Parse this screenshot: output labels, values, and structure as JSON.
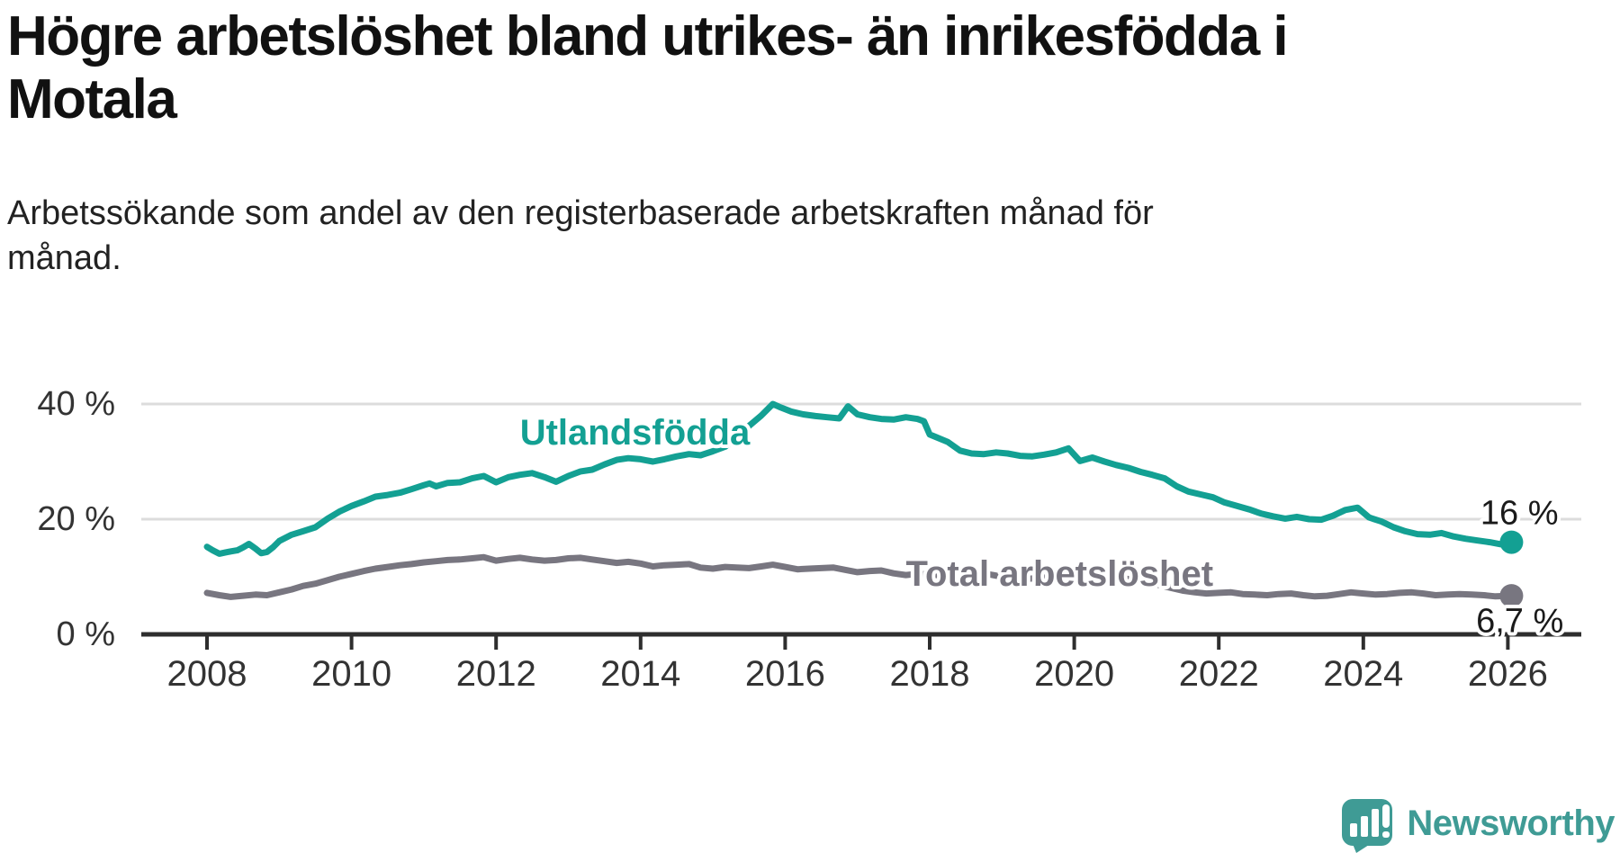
{
  "header": {
    "title": "Högre arbetslöshet bland utrikes- än inrikesfödda i Motala",
    "title_lines": [
      "Högre arbetslöshet bland utrikes- än inrikesfödda i",
      "Motala"
    ],
    "subtitle": "Arbetssökande som andel av den registerbaserade arbetskraften månad för månad.",
    "subtitle_lines": [
      "Arbetssökande som andel av den registerbaserade arbetskraften månad för",
      "månad."
    ]
  },
  "footer": {
    "brand": "Newsworthy"
  },
  "colors": {
    "accent_teal": "#13A093",
    "line_gray": "#787680",
    "grid": "#DCDCDC",
    "axis": "#2E2E2E",
    "tick_label": "#333333",
    "annotation": "#1A1A1A",
    "logo_teal": "#3F9B95",
    "background": "#FFFFFF"
  },
  "chart_data": {
    "type": "line",
    "title": "Högre arbetslöshet bland utrikes- än inrikesfödda i Motala",
    "subtitle": "Arbetssökande som andel av den registerbaserade arbetskraften månad för månad.",
    "xlabel": "",
    "ylabel": "",
    "xlim": [
      2007.1,
      2027.0
    ],
    "ylim": [
      0,
      44
    ],
    "grid": "horizontal",
    "legend_position": "inline-labels",
    "yticks": [
      {
        "value": 40,
        "label": "40 %"
      },
      {
        "value": 20,
        "label": "20 %"
      },
      {
        "value": 0,
        "label": "0 %"
      }
    ],
    "xticks": [
      {
        "value": 2008,
        "label": "2008"
      },
      {
        "value": 2010,
        "label": "2010"
      },
      {
        "value": 2012,
        "label": "2012"
      },
      {
        "value": 2014,
        "label": "2014"
      },
      {
        "value": 2016,
        "label": "2016"
      },
      {
        "value": 2018,
        "label": "2018"
      },
      {
        "value": 2020,
        "label": "2020"
      },
      {
        "value": 2022,
        "label": "2022"
      },
      {
        "value": 2024,
        "label": "2024"
      },
      {
        "value": 2026,
        "label": "2026"
      }
    ],
    "series": [
      {
        "name": "Utlandsfödda",
        "color": "#13A093",
        "line_width": 7,
        "label": {
          "text": "Utlandsfödda",
          "x": 2012.33,
          "y": 35.0
        },
        "end_label": {
          "text": "16 %",
          "x": 2025.62,
          "y": 21.0
        },
        "end_dot": true,
        "points": [
          [
            2008.0,
            15.2
          ],
          [
            2008.08,
            14.6
          ],
          [
            2008.17,
            14.0
          ],
          [
            2008.25,
            14.2
          ],
          [
            2008.33,
            14.4
          ],
          [
            2008.42,
            14.6
          ],
          [
            2008.5,
            15.1
          ],
          [
            2008.58,
            15.7
          ],
          [
            2008.67,
            14.9
          ],
          [
            2008.75,
            14.1
          ],
          [
            2008.83,
            14.3
          ],
          [
            2008.92,
            15.2
          ],
          [
            2009.0,
            16.2
          ],
          [
            2009.17,
            17.3
          ],
          [
            2009.33,
            17.9
          ],
          [
            2009.5,
            18.6
          ],
          [
            2009.67,
            20.1
          ],
          [
            2009.83,
            21.3
          ],
          [
            2010.0,
            22.3
          ],
          [
            2010.17,
            23.1
          ],
          [
            2010.33,
            23.9
          ],
          [
            2010.5,
            24.2
          ],
          [
            2010.67,
            24.6
          ],
          [
            2010.83,
            25.2
          ],
          [
            2011.0,
            25.9
          ],
          [
            2011.08,
            26.2
          ],
          [
            2011.17,
            25.7
          ],
          [
            2011.33,
            26.3
          ],
          [
            2011.5,
            26.4
          ],
          [
            2011.67,
            27.1
          ],
          [
            2011.83,
            27.5
          ],
          [
            2012.0,
            26.4
          ],
          [
            2012.17,
            27.3
          ],
          [
            2012.33,
            27.7
          ],
          [
            2012.5,
            28.0
          ],
          [
            2012.67,
            27.3
          ],
          [
            2012.83,
            26.5
          ],
          [
            2013.0,
            27.5
          ],
          [
            2013.17,
            28.3
          ],
          [
            2013.33,
            28.6
          ],
          [
            2013.5,
            29.5
          ],
          [
            2013.67,
            30.3
          ],
          [
            2013.83,
            30.6
          ],
          [
            2014.0,
            30.4
          ],
          [
            2014.17,
            30.0
          ],
          [
            2014.33,
            30.4
          ],
          [
            2014.5,
            30.9
          ],
          [
            2014.67,
            31.3
          ],
          [
            2014.83,
            31.1
          ],
          [
            2015.0,
            31.8
          ],
          [
            2015.17,
            32.6
          ],
          [
            2015.33,
            34.2
          ],
          [
            2015.5,
            36.2
          ],
          [
            2015.67,
            38.0
          ],
          [
            2015.83,
            40.0
          ],
          [
            2015.92,
            39.5
          ],
          [
            2016.08,
            38.7
          ],
          [
            2016.25,
            38.2
          ],
          [
            2016.42,
            37.9
          ],
          [
            2016.58,
            37.7
          ],
          [
            2016.75,
            37.5
          ],
          [
            2016.87,
            39.6
          ],
          [
            2017.0,
            38.2
          ],
          [
            2017.17,
            37.7
          ],
          [
            2017.33,
            37.4
          ],
          [
            2017.5,
            37.3
          ],
          [
            2017.67,
            37.7
          ],
          [
            2017.83,
            37.4
          ],
          [
            2017.92,
            37.0
          ],
          [
            2018.0,
            34.7
          ],
          [
            2018.08,
            34.3
          ],
          [
            2018.25,
            33.4
          ],
          [
            2018.42,
            31.9
          ],
          [
            2018.58,
            31.4
          ],
          [
            2018.75,
            31.3
          ],
          [
            2018.92,
            31.6
          ],
          [
            2019.08,
            31.4
          ],
          [
            2019.25,
            31.0
          ],
          [
            2019.42,
            30.9
          ],
          [
            2019.58,
            31.2
          ],
          [
            2019.75,
            31.6
          ],
          [
            2019.92,
            32.3
          ],
          [
            2020.08,
            30.1
          ],
          [
            2020.25,
            30.7
          ],
          [
            2020.42,
            30.0
          ],
          [
            2020.58,
            29.4
          ],
          [
            2020.75,
            28.9
          ],
          [
            2020.92,
            28.2
          ],
          [
            2021.08,
            27.7
          ],
          [
            2021.25,
            27.1
          ],
          [
            2021.42,
            25.7
          ],
          [
            2021.58,
            24.8
          ],
          [
            2021.75,
            24.3
          ],
          [
            2021.92,
            23.8
          ],
          [
            2022.08,
            22.9
          ],
          [
            2022.25,
            22.3
          ],
          [
            2022.42,
            21.7
          ],
          [
            2022.58,
            21.0
          ],
          [
            2022.75,
            20.5
          ],
          [
            2022.92,
            20.1
          ],
          [
            2023.08,
            20.4
          ],
          [
            2023.25,
            20.0
          ],
          [
            2023.42,
            19.9
          ],
          [
            2023.58,
            20.6
          ],
          [
            2023.75,
            21.6
          ],
          [
            2023.92,
            22.0
          ],
          [
            2024.08,
            20.3
          ],
          [
            2024.25,
            19.6
          ],
          [
            2024.42,
            18.6
          ],
          [
            2024.58,
            17.9
          ],
          [
            2024.75,
            17.4
          ],
          [
            2024.92,
            17.3
          ],
          [
            2025.08,
            17.6
          ],
          [
            2025.25,
            17.0
          ],
          [
            2025.42,
            16.6
          ],
          [
            2025.58,
            16.3
          ],
          [
            2025.75,
            16.0
          ],
          [
            2025.92,
            15.6
          ],
          [
            2026.05,
            16.0
          ]
        ]
      },
      {
        "name": "Total arbetslöshet",
        "color": "#787680",
        "line_width": 7,
        "label": {
          "text": "Total arbetslöshet",
          "x": 2017.67,
          "y": 10.5
        },
        "end_label": {
          "text": "6,7 %",
          "x": 2025.56,
          "y": 2.3
        },
        "end_dot": true,
        "points": [
          [
            2008.0,
            7.2
          ],
          [
            2008.17,
            6.8
          ],
          [
            2008.33,
            6.5
          ],
          [
            2008.5,
            6.7
          ],
          [
            2008.67,
            6.9
          ],
          [
            2008.83,
            6.8
          ],
          [
            2009.0,
            7.3
          ],
          [
            2009.17,
            7.8
          ],
          [
            2009.33,
            8.4
          ],
          [
            2009.5,
            8.8
          ],
          [
            2009.67,
            9.4
          ],
          [
            2009.83,
            10.0
          ],
          [
            2010.0,
            10.5
          ],
          [
            2010.17,
            11.0
          ],
          [
            2010.33,
            11.4
          ],
          [
            2010.5,
            11.7
          ],
          [
            2010.67,
            12.0
          ],
          [
            2010.83,
            12.2
          ],
          [
            2011.0,
            12.5
          ],
          [
            2011.17,
            12.7
          ],
          [
            2011.33,
            12.9
          ],
          [
            2011.5,
            13.0
          ],
          [
            2011.67,
            13.2
          ],
          [
            2011.83,
            13.4
          ],
          [
            2012.0,
            12.8
          ],
          [
            2012.17,
            13.1
          ],
          [
            2012.33,
            13.3
          ],
          [
            2012.5,
            13.0
          ],
          [
            2012.67,
            12.8
          ],
          [
            2012.83,
            12.9
          ],
          [
            2013.0,
            13.2
          ],
          [
            2013.17,
            13.3
          ],
          [
            2013.33,
            13.0
          ],
          [
            2013.5,
            12.7
          ],
          [
            2013.67,
            12.4
          ],
          [
            2013.83,
            12.6
          ],
          [
            2014.0,
            12.3
          ],
          [
            2014.17,
            11.8
          ],
          [
            2014.33,
            12.0
          ],
          [
            2014.5,
            12.1
          ],
          [
            2014.67,
            12.2
          ],
          [
            2014.83,
            11.6
          ],
          [
            2015.0,
            11.4
          ],
          [
            2015.17,
            11.7
          ],
          [
            2015.33,
            11.6
          ],
          [
            2015.5,
            11.5
          ],
          [
            2015.67,
            11.8
          ],
          [
            2015.83,
            12.1
          ],
          [
            2016.0,
            11.7
          ],
          [
            2016.17,
            11.3
          ],
          [
            2016.33,
            11.4
          ],
          [
            2016.5,
            11.5
          ],
          [
            2016.67,
            11.6
          ],
          [
            2016.83,
            11.2
          ],
          [
            2017.0,
            10.8
          ],
          [
            2017.17,
            11.0
          ],
          [
            2017.33,
            11.1
          ],
          [
            2017.5,
            10.6
          ],
          [
            2017.67,
            10.3
          ],
          [
            2017.83,
            10.5
          ],
          [
            2018.0,
            10.4
          ],
          [
            2018.17,
            10.2
          ],
          [
            2018.33,
            10.0
          ],
          [
            2018.5,
            9.9
          ],
          [
            2018.67,
            10.2
          ],
          [
            2018.83,
            10.4
          ],
          [
            2019.0,
            10.0
          ],
          [
            2019.17,
            9.7
          ],
          [
            2019.33,
            9.6
          ],
          [
            2019.5,
            9.8
          ],
          [
            2019.67,
            9.9
          ],
          [
            2019.83,
            10.1
          ],
          [
            2020.0,
            10.3
          ],
          [
            2020.17,
            10.8
          ],
          [
            2020.33,
            10.5
          ],
          [
            2020.5,
            10.2
          ],
          [
            2020.67,
            9.8
          ],
          [
            2020.83,
            9.4
          ],
          [
            2021.0,
            9.0
          ],
          [
            2021.17,
            8.6
          ],
          [
            2021.33,
            8.1
          ],
          [
            2021.5,
            7.6
          ],
          [
            2021.67,
            7.3
          ],
          [
            2021.83,
            7.1
          ],
          [
            2022.0,
            7.2
          ],
          [
            2022.17,
            7.3
          ],
          [
            2022.33,
            7.0
          ],
          [
            2022.5,
            6.9
          ],
          [
            2022.67,
            6.8
          ],
          [
            2022.83,
            7.0
          ],
          [
            2023.0,
            7.1
          ],
          [
            2023.17,
            6.8
          ],
          [
            2023.33,
            6.6
          ],
          [
            2023.5,
            6.7
          ],
          [
            2023.67,
            7.0
          ],
          [
            2023.83,
            7.3
          ],
          [
            2024.0,
            7.1
          ],
          [
            2024.17,
            6.9
          ],
          [
            2024.33,
            7.0
          ],
          [
            2024.5,
            7.2
          ],
          [
            2024.67,
            7.3
          ],
          [
            2024.83,
            7.1
          ],
          [
            2025.0,
            6.8
          ],
          [
            2025.17,
            6.9
          ],
          [
            2025.33,
            7.0
          ],
          [
            2025.5,
            6.9
          ],
          [
            2025.67,
            6.8
          ],
          [
            2025.83,
            6.6
          ],
          [
            2026.05,
            6.7
          ]
        ]
      }
    ]
  }
}
